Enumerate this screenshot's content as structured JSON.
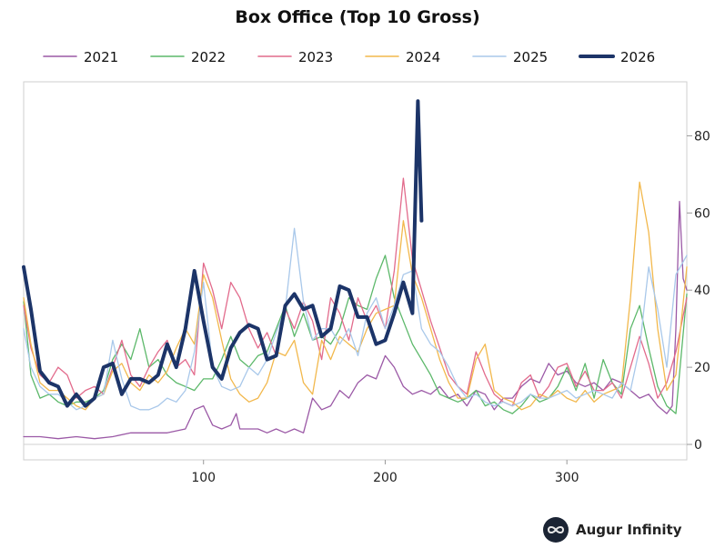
{
  "brand": {
    "name": "Augur Infinity",
    "logo_icon": "infinity-logo-icon"
  },
  "chart_data": {
    "type": "line",
    "title": "Box Office (Top 10 Gross)",
    "xlabel": "",
    "ylabel": "",
    "xlim": [
      1,
      366
    ],
    "ylim": [
      -4,
      94
    ],
    "xticks": [
      100,
      200,
      300
    ],
    "yticks": [
      0,
      20,
      40,
      60,
      80
    ],
    "y_axis_side": "right",
    "grid": false,
    "zero_line": true,
    "legend_position": "top",
    "series": [
      {
        "name": "2021",
        "color": "#9b59a6",
        "width": 1.3,
        "x": [
          1,
          10,
          20,
          30,
          40,
          50,
          60,
          70,
          80,
          90,
          95,
          100,
          105,
          110,
          115,
          118,
          120,
          125,
          130,
          135,
          140,
          145,
          150,
          155,
          160,
          165,
          170,
          175,
          180,
          185,
          190,
          195,
          200,
          205,
          210,
          215,
          220,
          225,
          230,
          235,
          240,
          245,
          250,
          255,
          260,
          265,
          270,
          275,
          280,
          285,
          290,
          295,
          300,
          305,
          310,
          315,
          320,
          325,
          330,
          335,
          340,
          345,
          350,
          355,
          358,
          360,
          362,
          364,
          366
        ],
        "y": [
          2,
          2,
          1.5,
          2,
          1.5,
          2,
          3,
          3,
          3,
          4,
          9,
          10,
          5,
          4,
          5,
          8,
          4,
          4,
          4,
          3,
          4,
          3,
          4,
          3,
          12,
          9,
          10,
          14,
          12,
          16,
          18,
          17,
          23,
          20,
          15,
          13,
          14,
          13,
          15,
          12,
          13,
          10,
          14,
          13,
          9,
          12,
          12,
          15,
          17,
          16,
          21,
          18,
          19,
          16,
          15,
          16,
          14,
          17,
          16,
          14,
          12,
          13,
          10,
          8,
          10,
          30,
          63,
          43,
          40
        ]
      },
      {
        "name": "2022",
        "color": "#5cb86a",
        "width": 1.3,
        "x": [
          1,
          5,
          10,
          15,
          20,
          25,
          30,
          35,
          40,
          45,
          50,
          55,
          60,
          65,
          70,
          75,
          80,
          85,
          90,
          95,
          100,
          105,
          110,
          115,
          120,
          125,
          130,
          135,
          140,
          145,
          150,
          155,
          160,
          165,
          170,
          175,
          180,
          185,
          190,
          195,
          200,
          205,
          210,
          215,
          220,
          225,
          230,
          235,
          240,
          245,
          250,
          255,
          260,
          265,
          270,
          275,
          280,
          285,
          290,
          295,
          300,
          305,
          310,
          315,
          320,
          325,
          330,
          335,
          340,
          345,
          350,
          355,
          360,
          366
        ],
        "y": [
          37,
          18,
          12,
          13,
          11,
          10,
          11,
          11,
          12,
          14,
          22,
          26,
          22,
          30,
          20,
          22,
          18,
          16,
          15,
          14,
          17,
          17,
          22,
          28,
          22,
          20,
          23,
          24,
          30,
          36,
          28,
          34,
          27,
          28,
          26,
          30,
          38,
          36,
          35,
          43,
          49,
          38,
          32,
          26,
          22,
          18,
          13,
          12,
          11,
          12,
          14,
          10,
          11,
          9,
          8,
          10,
          13,
          11,
          12,
          15,
          20,
          14,
          21,
          12,
          22,
          16,
          13,
          30,
          36,
          25,
          15,
          10,
          8,
          39
        ]
      },
      {
        "name": "2023",
        "color": "#e26b8c",
        "width": 1.3,
        "x": [
          1,
          5,
          10,
          15,
          20,
          25,
          30,
          35,
          40,
          45,
          50,
          55,
          60,
          65,
          70,
          75,
          80,
          85,
          90,
          95,
          100,
          105,
          110,
          115,
          120,
          125,
          130,
          135,
          140,
          145,
          150,
          155,
          160,
          165,
          170,
          175,
          180,
          185,
          190,
          195,
          200,
          205,
          210,
          215,
          220,
          225,
          230,
          235,
          240,
          245,
          250,
          255,
          260,
          265,
          270,
          275,
          280,
          285,
          290,
          295,
          300,
          305,
          310,
          315,
          320,
          325,
          330,
          335,
          340,
          345,
          350,
          355,
          360,
          366
        ],
        "y": [
          36,
          25,
          18,
          16,
          20,
          18,
          12,
          14,
          15,
          13,
          20,
          27,
          18,
          15,
          20,
          24,
          27,
          20,
          22,
          18,
          47,
          40,
          30,
          42,
          38,
          30,
          25,
          29,
          23,
          35,
          30,
          37,
          32,
          22,
          38,
          34,
          27,
          38,
          32,
          36,
          30,
          45,
          69,
          48,
          40,
          32,
          25,
          18,
          15,
          13,
          24,
          18,
          13,
          11,
          10,
          16,
          18,
          12,
          15,
          20,
          21,
          15,
          19,
          14,
          14,
          16,
          12,
          20,
          28,
          21,
          12,
          16,
          24,
          38
        ]
      },
      {
        "name": "2024",
        "color": "#f2b84c",
        "width": 1.3,
        "x": [
          1,
          5,
          10,
          15,
          20,
          25,
          30,
          35,
          40,
          45,
          50,
          55,
          60,
          65,
          70,
          75,
          80,
          85,
          90,
          95,
          100,
          105,
          110,
          115,
          120,
          125,
          130,
          135,
          140,
          145,
          150,
          155,
          160,
          165,
          170,
          175,
          180,
          185,
          190,
          195,
          200,
          205,
          210,
          215,
          220,
          225,
          230,
          235,
          240,
          245,
          250,
          255,
          260,
          265,
          270,
          275,
          280,
          285,
          290,
          295,
          300,
          305,
          310,
          315,
          320,
          325,
          330,
          335,
          340,
          345,
          350,
          355,
          360,
          366
        ],
        "y": [
          38,
          26,
          16,
          14,
          14,
          12,
          10,
          9,
          12,
          13,
          19,
          21,
          16,
          14,
          18,
          16,
          19,
          25,
          30,
          26,
          44,
          38,
          27,
          17,
          13,
          11,
          12,
          16,
          24,
          23,
          27,
          16,
          13,
          27,
          22,
          28,
          26,
          24,
          30,
          34,
          35,
          36,
          58,
          44,
          38,
          30,
          22,
          16,
          12,
          12,
          22,
          26,
          14,
          12,
          11,
          9,
          10,
          13,
          12,
          14,
          12,
          11,
          14,
          11,
          13,
          14,
          15,
          38,
          68,
          55,
          30,
          14,
          18,
          46
        ]
      },
      {
        "name": "2025",
        "color": "#a9c8ea",
        "width": 1.3,
        "x": [
          1,
          5,
          10,
          15,
          20,
          25,
          30,
          35,
          40,
          45,
          50,
          55,
          60,
          65,
          70,
          75,
          80,
          85,
          90,
          95,
          100,
          105,
          110,
          115,
          120,
          125,
          130,
          135,
          140,
          145,
          150,
          155,
          160,
          165,
          170,
          175,
          180,
          185,
          190,
          195,
          200,
          205,
          210,
          215,
          220,
          225,
          230,
          235,
          240,
          245,
          250,
          255,
          260,
          265,
          270,
          275,
          280,
          285,
          290,
          295,
          300,
          305,
          310,
          315,
          320,
          325,
          330,
          335,
          340,
          345,
          350,
          355,
          360,
          366
        ],
        "y": [
          30,
          20,
          15,
          13,
          13,
          11,
          9,
          10,
          12,
          13,
          27,
          17,
          10,
          9,
          9,
          10,
          12,
          11,
          14,
          24,
          42,
          20,
          15,
          14,
          15,
          20,
          18,
          22,
          29,
          35,
          56,
          37,
          27,
          30,
          30,
          26,
          30,
          23,
          34,
          38,
          30,
          36,
          44,
          45,
          30,
          26,
          24,
          20,
          15,
          12,
          13,
          11,
          10,
          11,
          10,
          11,
          13,
          12,
          12,
          13,
          14,
          12,
          13,
          14,
          13,
          12,
          16,
          14,
          25,
          46,
          35,
          20,
          44,
          49
        ]
      },
      {
        "name": "2026",
        "color": "#1c3468",
        "width": 4,
        "x": [
          1,
          5,
          10,
          15,
          20,
          25,
          30,
          35,
          40,
          45,
          50,
          55,
          60,
          65,
          70,
          75,
          80,
          85,
          90,
          95,
          100,
          105,
          110,
          115,
          120,
          125,
          130,
          135,
          140,
          145,
          150,
          155,
          160,
          165,
          170,
          175,
          180,
          185,
          190,
          195,
          200,
          205,
          210,
          215,
          218,
          220
        ],
        "y": [
          46,
          35,
          19,
          16,
          15,
          10,
          13,
          10,
          12,
          20,
          21,
          13,
          17,
          17,
          16,
          18,
          26,
          20,
          30,
          45,
          32,
          20,
          17,
          25,
          29,
          31,
          30,
          22,
          23,
          36,
          39,
          35,
          36,
          28,
          30,
          41,
          40,
          33,
          33,
          26,
          27,
          34,
          42,
          34,
          89,
          58
        ]
      }
    ]
  }
}
